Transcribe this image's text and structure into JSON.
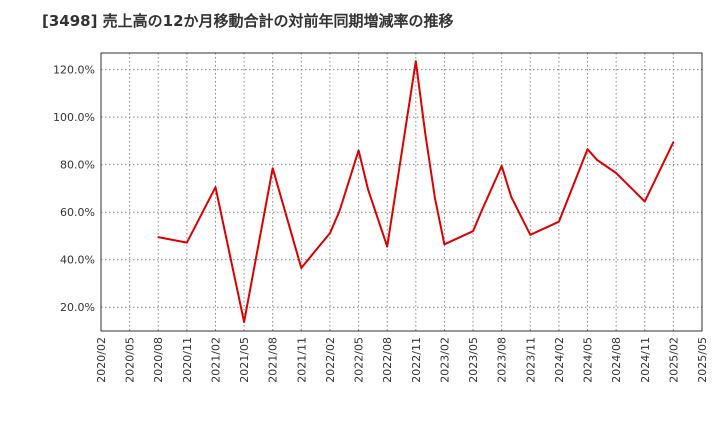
{
  "chart_data": {
    "type": "line",
    "title": "[3498]  売上高の12か月移動合計の対前年同期増減率の推移",
    "xlabel": "",
    "ylabel": "",
    "ylim": [
      10,
      127
    ],
    "yticks": [
      20,
      40,
      60,
      80,
      100,
      120
    ],
    "ytick_labels": [
      "20.0%",
      "40.0%",
      "60.0%",
      "80.0%",
      "100.0%",
      "120.0%"
    ],
    "categories": [
      "2020/02",
      "2020/05",
      "2020/08",
      "2020/11",
      "2021/02",
      "2021/05",
      "2021/08",
      "2021/11",
      "2022/02",
      "2022/05",
      "2022/08",
      "2022/11",
      "2023/02",
      "2023/05",
      "2023/08",
      "2023/11",
      "2024/02",
      "2024/05",
      "2024/08",
      "2024/11",
      "2025/02",
      "2025/05"
    ],
    "grid": true,
    "series": [
      {
        "name": "対前年同期増減率",
        "color": "#dd0000",
        "x": [
          "2020/08",
          "2020/11",
          "2021/02",
          "2021/05",
          "2021/08",
          "2021/11",
          "2021/12",
          "2022/02",
          "2022/03",
          "2022/05",
          "2022/06",
          "2022/08",
          "2022/11",
          "2022/12",
          "2023/01",
          "2023/02",
          "2023/05",
          "2023/06",
          "2023/08",
          "2023/09",
          "2023/11",
          "2024/02",
          "2024/05",
          "2024/06",
          "2024/08",
          "2024/11",
          "2025/02"
        ],
        "values": [
          49.5,
          47.2,
          70.5,
          13.8,
          78.5,
          36.5,
          41.5,
          51.2,
          60.5,
          86.0,
          69.5,
          45.5,
          123.5,
          93.0,
          66.0,
          46.5,
          52.0,
          61.5,
          79.5,
          66.5,
          50.5,
          56.0,
          86.5,
          82.0,
          76.5,
          64.5,
          89.5
        ]
      }
    ]
  }
}
